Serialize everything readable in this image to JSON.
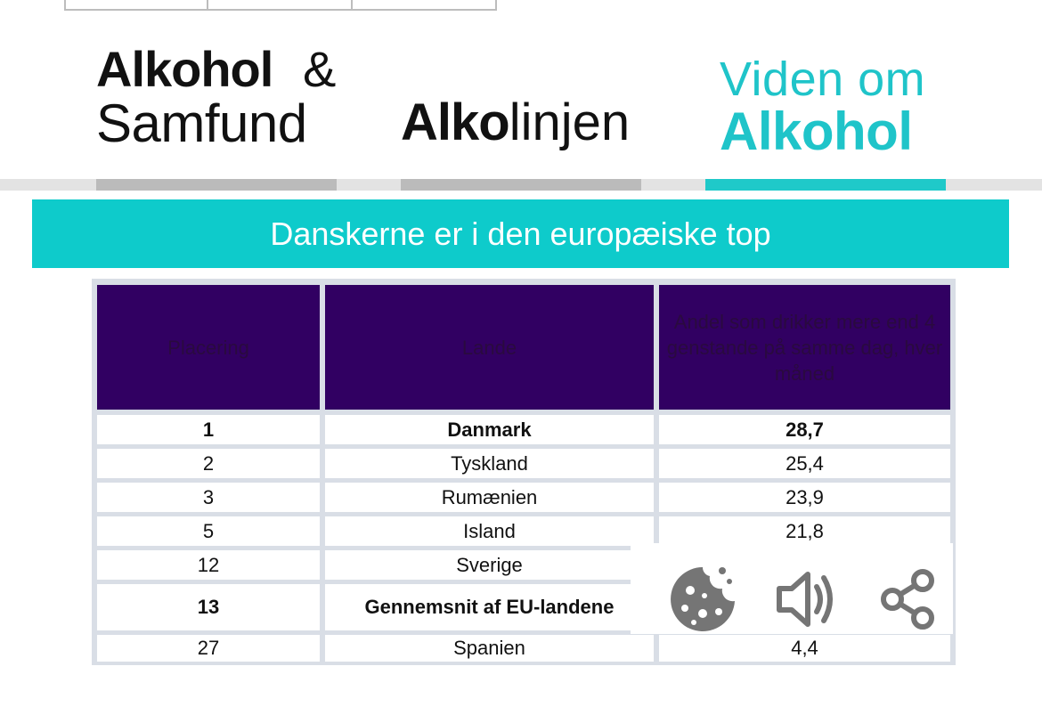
{
  "header": {
    "logos": [
      {
        "line1": "Alkohol",
        "amp": "&",
        "line2": "Samfund"
      },
      {
        "bold": "Alko",
        "regular": "linjen"
      },
      {
        "line1": "Viden om",
        "line2": "Alkohol"
      }
    ]
  },
  "banner": {
    "title": "Danskerne er i den europæiske top"
  },
  "table": {
    "headers": [
      "Placering",
      "Lande",
      "Andel som drikker mere end 4 genstande på samme dag, hver måned"
    ],
    "rows": [
      {
        "rank": "1",
        "country": "Danmark",
        "value": "28,7",
        "bold": true
      },
      {
        "rank": "2",
        "country": "Tyskland",
        "value": "25,4",
        "bold": false
      },
      {
        "rank": "3",
        "country": "Rumænien",
        "value": "23,9",
        "bold": false
      },
      {
        "rank": "5",
        "country": "Island",
        "value": "21,8",
        "bold": false
      },
      {
        "rank": "12",
        "country": "Sverige",
        "value": "",
        "bold": false
      },
      {
        "rank": "13",
        "country": "Gennemsnit af EU-landene",
        "value": "",
        "bold": true
      },
      {
        "rank": "27",
        "country": "Spanien",
        "value": "4,4",
        "bold": false
      }
    ]
  },
  "toolbar": {
    "icons": [
      "cookie-icon",
      "speaker-icon",
      "share-icon"
    ],
    "color": "#757575"
  },
  "colors": {
    "accent": "#0ecbcb",
    "header_bg": "#310062"
  }
}
